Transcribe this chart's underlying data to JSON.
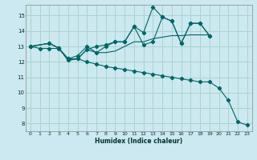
{
  "xlabel": "Humidex (Indice chaleur)",
  "background_color": "#cce8f0",
  "grid_color": "#aad4cc",
  "line_color": "#006666",
  "xlim": [
    -0.5,
    23.5
  ],
  "ylim": [
    7.5,
    15.7
  ],
  "xticks": [
    0,
    1,
    2,
    3,
    4,
    5,
    6,
    7,
    8,
    9,
    10,
    11,
    12,
    13,
    14,
    15,
    16,
    17,
    18,
    19,
    20,
    21,
    22,
    23
  ],
  "yticks": [
    8,
    9,
    10,
    11,
    12,
    13,
    14,
    15
  ],
  "lines": [
    {
      "x": [
        0,
        2,
        3,
        4,
        5,
        6,
        7,
        8,
        9,
        10,
        11,
        12,
        13,
        14,
        15,
        16,
        17,
        18,
        19
      ],
      "y": [
        13,
        13.2,
        12.9,
        12.1,
        12.2,
        12.8,
        13.0,
        13.1,
        13.3,
        13.3,
        14.3,
        13.9,
        15.55,
        14.9,
        14.65,
        13.2,
        14.5,
        14.5,
        13.7
      ],
      "has_markers": true
    },
    {
      "x": [
        0,
        2,
        3,
        4,
        5,
        6,
        7,
        8,
        9,
        10,
        11,
        12,
        13,
        14,
        15,
        16,
        17,
        18,
        19
      ],
      "y": [
        13,
        13.2,
        12.9,
        12.2,
        12.4,
        13.0,
        12.6,
        13.0,
        13.3,
        13.3,
        14.3,
        13.1,
        13.3,
        14.9,
        14.65,
        13.2,
        14.5,
        14.5,
        13.7
      ],
      "has_markers": true
    },
    {
      "x": [
        0,
        2,
        3,
        4,
        5,
        6,
        7,
        8,
        9,
        10,
        11,
        12,
        13,
        14,
        15,
        16,
        17,
        18,
        19
      ],
      "y": [
        13,
        13.2,
        12.9,
        12.1,
        12.2,
        12.8,
        12.6,
        12.6,
        12.7,
        13.0,
        13.3,
        13.3,
        13.5,
        13.6,
        13.7,
        13.7,
        13.75,
        13.75,
        13.75
      ],
      "has_markers": false
    },
    {
      "x": [
        0,
        1,
        2,
        3,
        4,
        5,
        6,
        7,
        8,
        9,
        10,
        11,
        12,
        13,
        14,
        15,
        16,
        17,
        18,
        19,
        20,
        21,
        22,
        23
      ],
      "y": [
        13,
        12.87,
        12.87,
        12.87,
        12.2,
        12.2,
        12.0,
        11.85,
        11.7,
        11.6,
        11.5,
        11.4,
        11.3,
        11.2,
        11.1,
        11.0,
        10.9,
        10.8,
        10.7,
        10.7,
        10.3,
        9.5,
        8.1,
        7.9
      ],
      "has_markers": true
    }
  ]
}
